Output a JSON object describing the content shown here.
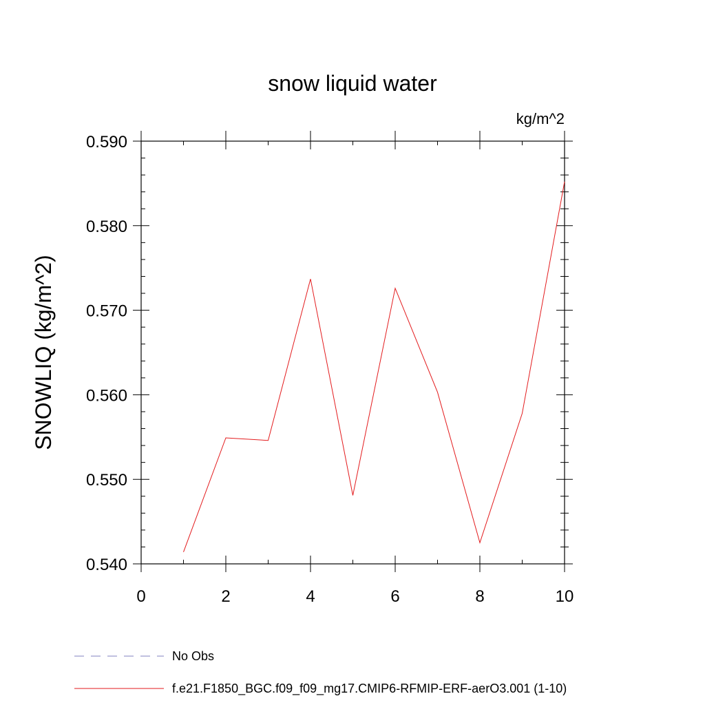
{
  "chart_data": {
    "type": "line",
    "title": "snow liquid water",
    "units": "kg/m^2",
    "ylabel": "SNOWLIQ  (kg/m^2)",
    "xlabel": "",
    "xlim": [
      0,
      10
    ],
    "ylim": [
      0.54,
      0.59
    ],
    "xticks": [
      "0",
      "2",
      "4",
      "6",
      "8",
      "10"
    ],
    "yticks": [
      "0.540",
      "0.550",
      "0.560",
      "0.570",
      "0.580",
      "0.590"
    ],
    "x_tick_values": [
      0,
      2,
      4,
      6,
      8,
      10
    ],
    "y_tick_values": [
      0.54,
      0.55,
      0.56,
      0.57,
      0.58,
      0.59
    ],
    "grid": false,
    "legend_position": "bottom-left",
    "series": [
      {
        "name": "f.e21.F1850_BGC.f09_f09_mg17.CMIP6-RFMIP-ERF-aerO3.001 (1-10)",
        "color": "#e31a1c",
        "style": "solid",
        "x": [
          1,
          2,
          3,
          4,
          5,
          6,
          7,
          8,
          9,
          10
        ],
        "y": [
          0.5414,
          0.5549,
          0.5546,
          0.5737,
          0.5481,
          0.5726,
          0.5603,
          0.5425,
          0.5578,
          0.5852
        ]
      }
    ],
    "legend": [
      {
        "label": "No Obs",
        "color": "#8080c0",
        "style": "dashed"
      },
      {
        "label": "f.e21.F1850_BGC.f09_f09_mg17.CMIP6-RFMIP-ERF-aerO3.001 (1-10)",
        "color": "#e31a1c",
        "style": "solid"
      }
    ]
  }
}
